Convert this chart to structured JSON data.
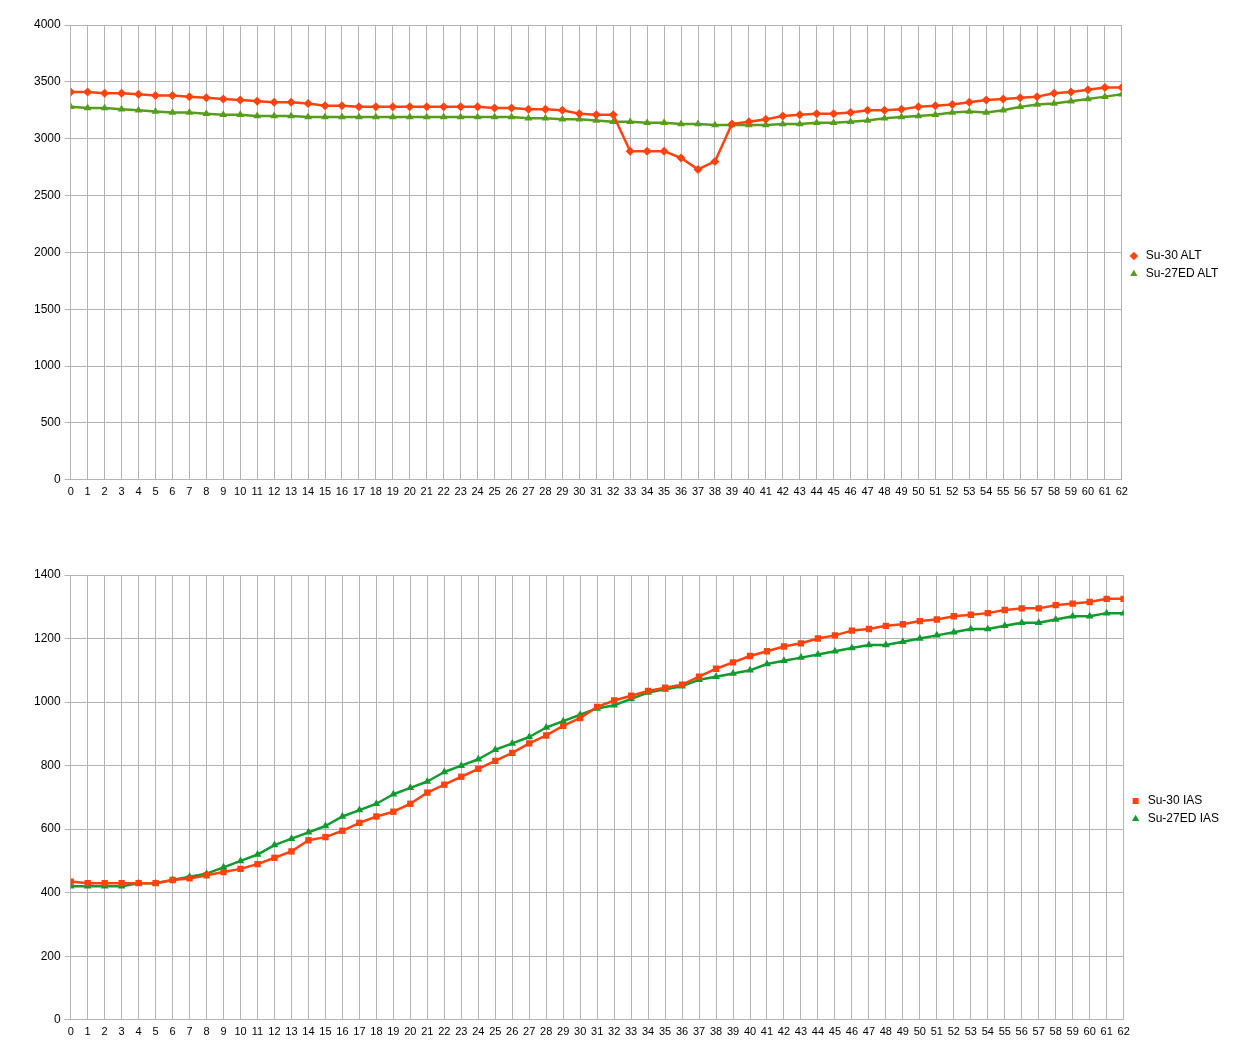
{
  "chart_data": [
    {
      "type": "line",
      "x": [
        0,
        1,
        2,
        3,
        4,
        5,
        6,
        7,
        8,
        9,
        10,
        11,
        12,
        13,
        14,
        15,
        16,
        17,
        18,
        19,
        20,
        21,
        22,
        23,
        24,
        25,
        26,
        27,
        28,
        29,
        30,
        31,
        32,
        33,
        34,
        35,
        36,
        37,
        38,
        39,
        40,
        41,
        42,
        43,
        44,
        45,
        46,
        47,
        48,
        49,
        50,
        51,
        52,
        53,
        54,
        55,
        56,
        57,
        58,
        59,
        60,
        61,
        62
      ],
      "series": [
        {
          "name": "Su-30 ALT",
          "color": "#ff420e",
          "marker": "diamond",
          "values": [
            3410,
            3410,
            3400,
            3400,
            3390,
            3380,
            3380,
            3370,
            3360,
            3350,
            3340,
            3330,
            3320,
            3320,
            3310,
            3290,
            3290,
            3280,
            3280,
            3280,
            3280,
            3280,
            3280,
            3280,
            3280,
            3270,
            3270,
            3260,
            3260,
            3250,
            3220,
            3210,
            3210,
            2890,
            2890,
            2890,
            2830,
            2730,
            2800,
            3130,
            3150,
            3170,
            3200,
            3210,
            3220,
            3220,
            3230,
            3250,
            3250,
            3260,
            3280,
            3290,
            3300,
            3320,
            3340,
            3350,
            3360,
            3370,
            3400,
            3410,
            3430,
            3450,
            3450
          ]
        },
        {
          "name": "Su-27ED ALT",
          "color": "#579d1c",
          "marker": "triangle",
          "values": [
            3280,
            3270,
            3270,
            3260,
            3250,
            3240,
            3230,
            3230,
            3220,
            3210,
            3210,
            3200,
            3200,
            3200,
            3190,
            3190,
            3190,
            3190,
            3190,
            3190,
            3190,
            3190,
            3190,
            3190,
            3190,
            3190,
            3190,
            3180,
            3180,
            3170,
            3170,
            3160,
            3150,
            3150,
            3140,
            3140,
            3130,
            3130,
            3120,
            3120,
            3120,
            3120,
            3130,
            3130,
            3140,
            3140,
            3150,
            3160,
            3180,
            3190,
            3200,
            3210,
            3230,
            3240,
            3230,
            3250,
            3280,
            3300,
            3310,
            3330,
            3350,
            3370,
            3390
          ]
        }
      ],
      "xlim": [
        0,
        62
      ],
      "xticks": [
        0,
        1,
        2,
        3,
        4,
        5,
        6,
        7,
        8,
        9,
        10,
        11,
        12,
        13,
        14,
        15,
        16,
        17,
        18,
        19,
        20,
        21,
        22,
        23,
        24,
        25,
        26,
        27,
        28,
        29,
        30,
        31,
        32,
        33,
        34,
        35,
        36,
        37,
        38,
        39,
        40,
        41,
        42,
        43,
        44,
        45,
        46,
        47,
        48,
        49,
        50,
        51,
        52,
        53,
        54,
        55,
        56,
        57,
        58,
        59,
        60,
        61,
        62
      ],
      "ylim": [
        0,
        4000
      ],
      "yticks": [
        0,
        500,
        1000,
        1500,
        2000,
        2500,
        3000,
        3500,
        4000
      ],
      "grid": true,
      "legend": "right",
      "line_style": "solid"
    },
    {
      "type": "line",
      "x": [
        0,
        1,
        2,
        3,
        4,
        5,
        6,
        7,
        8,
        9,
        10,
        11,
        12,
        13,
        14,
        15,
        16,
        17,
        18,
        19,
        20,
        21,
        22,
        23,
        24,
        25,
        26,
        27,
        28,
        29,
        30,
        31,
        32,
        33,
        34,
        35,
        36,
        37,
        38,
        39,
        40,
        41,
        42,
        43,
        44,
        45,
        46,
        47,
        48,
        49,
        50,
        51,
        52,
        53,
        54,
        55,
        56,
        57,
        58,
        59,
        60,
        61,
        62
      ],
      "series": [
        {
          "name": "Su-30 IAS",
          "color": "#ff420e",
          "marker": "square",
          "values": [
            435,
            430,
            430,
            430,
            430,
            430,
            440,
            445,
            455,
            465,
            475,
            490,
            510,
            530,
            565,
            575,
            595,
            620,
            640,
            655,
            680,
            715,
            740,
            765,
            790,
            815,
            840,
            870,
            895,
            925,
            950,
            985,
            1005,
            1020,
            1035,
            1045,
            1055,
            1080,
            1105,
            1125,
            1145,
            1160,
            1175,
            1185,
            1200,
            1210,
            1225,
            1230,
            1240,
            1245,
            1255,
            1260,
            1270,
            1275,
            1280,
            1290,
            1295,
            1295,
            1305,
            1310,
            1315,
            1325,
            1325
          ]
        },
        {
          "name": "Su-27ED IAS",
          "color": "#0f9b30",
          "marker": "triangle",
          "values": [
            420,
            420,
            420,
            420,
            430,
            430,
            440,
            450,
            460,
            480,
            500,
            520,
            550,
            570,
            590,
            610,
            640,
            660,
            680,
            710,
            730,
            750,
            780,
            800,
            820,
            850,
            870,
            890,
            920,
            940,
            960,
            980,
            990,
            1010,
            1030,
            1040,
            1050,
            1070,
            1080,
            1090,
            1100,
            1120,
            1130,
            1140,
            1150,
            1160,
            1170,
            1180,
            1180,
            1190,
            1200,
            1210,
            1220,
            1230,
            1230,
            1240,
            1250,
            1250,
            1260,
            1270,
            1270,
            1280,
            1280
          ]
        }
      ],
      "xlim": [
        0,
        62
      ],
      "xticks": [
        0,
        1,
        2,
        3,
        4,
        5,
        6,
        7,
        8,
        9,
        10,
        11,
        12,
        13,
        14,
        15,
        16,
        17,
        18,
        19,
        20,
        21,
        22,
        23,
        24,
        25,
        26,
        27,
        28,
        29,
        30,
        31,
        32,
        33,
        34,
        35,
        36,
        37,
        38,
        39,
        40,
        41,
        42,
        43,
        44,
        45,
        46,
        47,
        48,
        49,
        50,
        51,
        52,
        53,
        54,
        55,
        56,
        57,
        58,
        59,
        60,
        61,
        62
      ],
      "ylim": [
        0,
        1400
      ],
      "yticks": [
        0,
        200,
        400,
        600,
        800,
        1000,
        1200,
        1400
      ],
      "grid": true,
      "legend": "right",
      "line_style": "solid"
    }
  ]
}
